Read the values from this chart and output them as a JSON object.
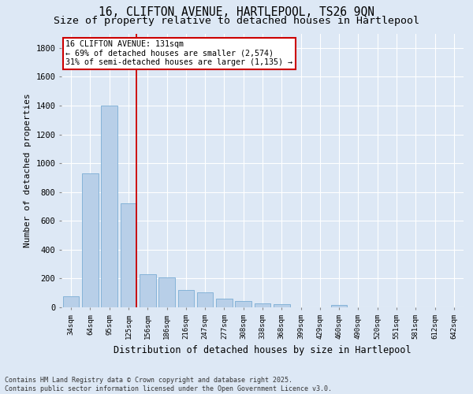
{
  "title_line1": "16, CLIFTON AVENUE, HARTLEPOOL, TS26 9QN",
  "title_line2": "Size of property relative to detached houses in Hartlepool",
  "xlabel": "Distribution of detached houses by size in Hartlepool",
  "ylabel": "Number of detached properties",
  "categories": [
    "34sqm",
    "64sqm",
    "95sqm",
    "125sqm",
    "156sqm",
    "186sqm",
    "216sqm",
    "247sqm",
    "277sqm",
    "308sqm",
    "338sqm",
    "368sqm",
    "399sqm",
    "429sqm",
    "460sqm",
    "490sqm",
    "520sqm",
    "551sqm",
    "581sqm",
    "612sqm",
    "642sqm"
  ],
  "values": [
    75,
    930,
    1400,
    720,
    230,
    210,
    120,
    105,
    60,
    45,
    30,
    20,
    0,
    0,
    15,
    0,
    0,
    0,
    0,
    0,
    0
  ],
  "bar_color": "#b8cfe8",
  "bar_edge_color": "#7aadd4",
  "red_line_index": 3,
  "annotation_text": "16 CLIFTON AVENUE: 131sqm\n← 69% of detached houses are smaller (2,574)\n31% of semi-detached houses are larger (1,135) →",
  "annotation_box_color": "#ffffff",
  "annotation_box_edge": "#cc0000",
  "footer_line1": "Contains HM Land Registry data © Crown copyright and database right 2025.",
  "footer_line2": "Contains public sector information licensed under the Open Government Licence v3.0.",
  "ylim": [
    0,
    1900
  ],
  "yticks": [
    0,
    200,
    400,
    600,
    800,
    1000,
    1200,
    1400,
    1600,
    1800
  ],
  "background_color": "#dde8f5",
  "grid_color": "#ffffff",
  "title_fontsize": 10.5,
  "subtitle_fontsize": 9.5,
  "figwidth": 6.0,
  "figheight": 5.0,
  "dpi": 100
}
